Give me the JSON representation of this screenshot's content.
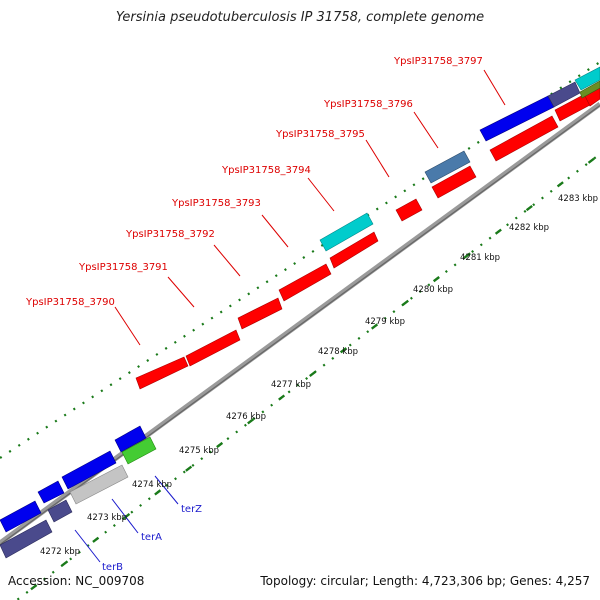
{
  "title": "Yersinia pseudotuberculosis IP 31758, complete genome",
  "footer": {
    "accession": "Accession: NC_009708",
    "topology": "Topology: circular; Length: 4,723,306 bp; Genes: 4,257"
  },
  "colors": {
    "red": "#ff0000",
    "blue": "#0000ee",
    "navy": "#4a4a8c",
    "teal": "#00cccc",
    "steel": "#4a7aaa",
    "green": "#44cc33",
    "silver": "#c4c4c4",
    "olive": "#6b8e23",
    "tick": "#1a7a1a",
    "backbone": "#888888",
    "red_label": "#dd0000",
    "blue_label": "#1a1acc"
  },
  "scale_labels": [
    "4272 kbp",
    "4273 kbp",
    "4274 kbp",
    "4275 kbp",
    "4276 kbp",
    "4277 kbp",
    "4278 kbp",
    "4279 kbp",
    "4280 kbp",
    "4281 kbp",
    "4282 kbp",
    "4283 kbp"
  ],
  "gene_labels_upper": [
    "YpsIP31758_3790",
    "YpsIP31758_3791",
    "YpsIP31758_3792",
    "YpsIP31758_3793",
    "YpsIP31758_3794",
    "YpsIP31758_3795",
    "YpsIP31758_3796",
    "YpsIP31758_3797"
  ],
  "gene_labels_lower": [
    "terB",
    "terA",
    "terZ"
  ]
}
